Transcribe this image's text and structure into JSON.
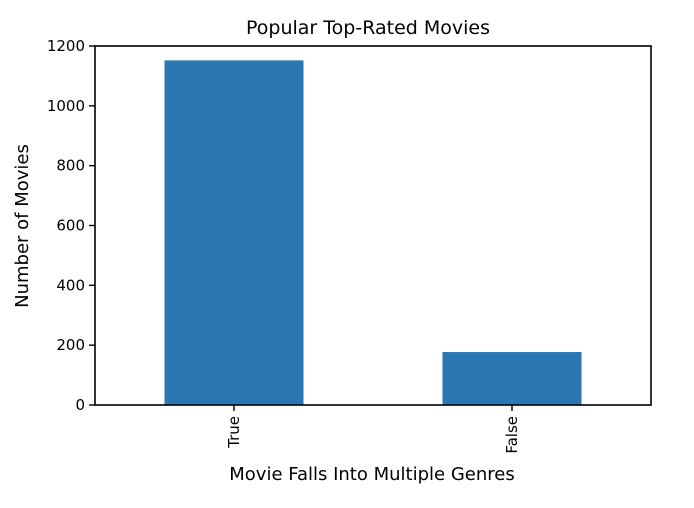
{
  "chart_data": {
    "type": "bar",
    "title": "Popular Top-Rated Movies",
    "xlabel": "Movie Falls Into Multiple Genres",
    "ylabel": "Number of Movies",
    "categories": [
      "True",
      "False"
    ],
    "values": [
      1152,
      177
    ],
    "ylim": [
      0,
      1200
    ],
    "yticks": [
      0,
      200,
      400,
      600,
      800,
      1000,
      1200
    ],
    "bar_color": "#2a77b4",
    "axis_color": "#000000",
    "grid": false,
    "legend": "none",
    "x_tick_rotation": "vertical"
  }
}
